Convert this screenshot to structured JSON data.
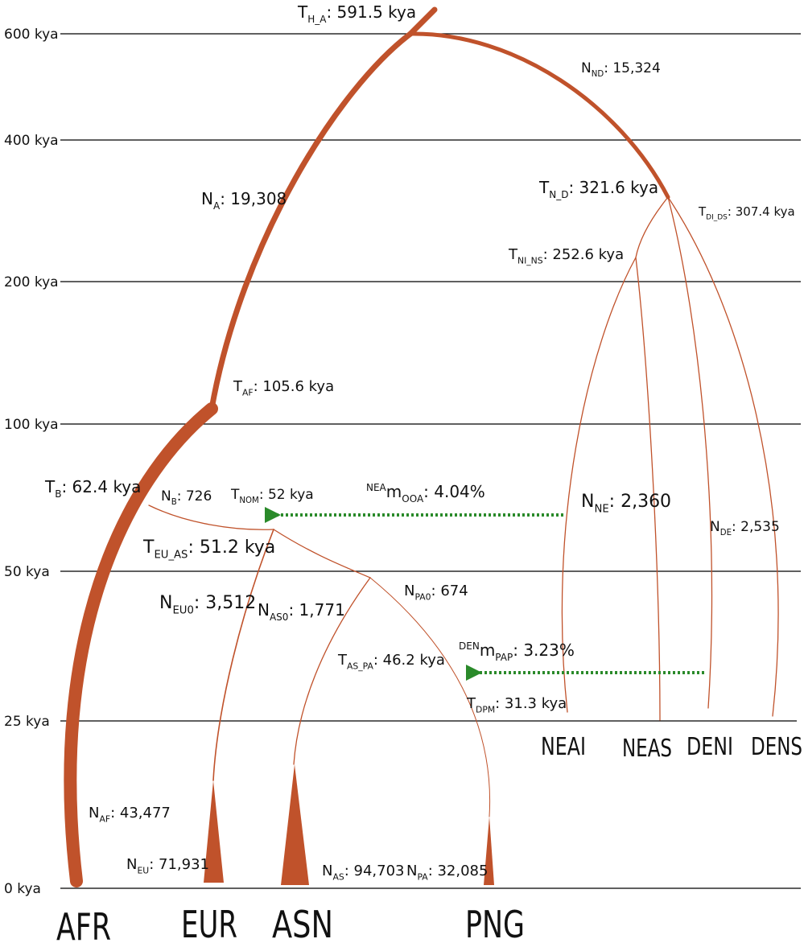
{
  "axis": {
    "ticks": [
      "600 kya",
      "400 kya",
      "200 kya",
      "100 kya",
      "50 kya",
      "25 kya",
      "0 kya"
    ]
  },
  "populations": [
    "AFR",
    "EUR",
    "ASN",
    "PNG",
    "NEAI",
    "NEAS",
    "DENI",
    "DENS"
  ],
  "labels": [
    {
      "symbol": "T",
      "sub": "H_A",
      "text": ": 591.5 kya"
    },
    {
      "symbol": "N",
      "sub": "ND",
      "text": ": 15,324"
    },
    {
      "symbol": "N",
      "sub": "A",
      "text": ": 19,308"
    },
    {
      "symbol": "T",
      "sub": "N_D",
      "text": ": 321.6 kya"
    },
    {
      "symbol": "T",
      "sub": "DI_DS",
      "text": ": 307.4 kya"
    },
    {
      "symbol": "T",
      "sub": "NI_NS",
      "text": ": 252.6 kya"
    },
    {
      "symbol": "T",
      "sub": "AF",
      "text": ": 105.6 kya"
    },
    {
      "symbol": "T",
      "sub": "B",
      "text": ": 62.4 kya"
    },
    {
      "symbol": "N",
      "sub": "B",
      "text": ": 726"
    },
    {
      "symbol": "T",
      "sub": "NOM",
      "text": ": 52 kya"
    },
    {
      "sup": "NEA",
      "symbol": "m",
      "sub": "OOA",
      "text": ": 4.04%"
    },
    {
      "symbol": "N",
      "sub": "NE",
      "text": ": 2,360"
    },
    {
      "symbol": "N",
      "sub": "DE",
      "text": ": 2,535"
    },
    {
      "symbol": "T",
      "sub": "EU_AS",
      "text": ": 51.2 kya"
    },
    {
      "symbol": "N",
      "sub": "PA0",
      "text": ": 674"
    },
    {
      "symbol": "N",
      "sub": "EU0",
      "text": ": 3,512"
    },
    {
      "symbol": "N",
      "sub": "AS0",
      "text": ": 1,771"
    },
    {
      "symbol": "T",
      "sub": "AS_PA",
      "text": ": 46.2 kya"
    },
    {
      "sup": "DEN",
      "symbol": "m",
      "sub": "PAP",
      "text": ": 3.23%"
    },
    {
      "symbol": "T",
      "sub": "DPM",
      "text": ": 31.3 kya"
    },
    {
      "symbol": "N",
      "sub": "AF",
      "text": ": 43,477"
    },
    {
      "symbol": "N",
      "sub": "EU",
      "text": ": 71,931"
    },
    {
      "symbol": "N",
      "sub": "AS",
      "text": ": 94,703"
    },
    {
      "symbol": "N",
      "sub": "PA",
      "text": ": 32,085"
    }
  ]
}
